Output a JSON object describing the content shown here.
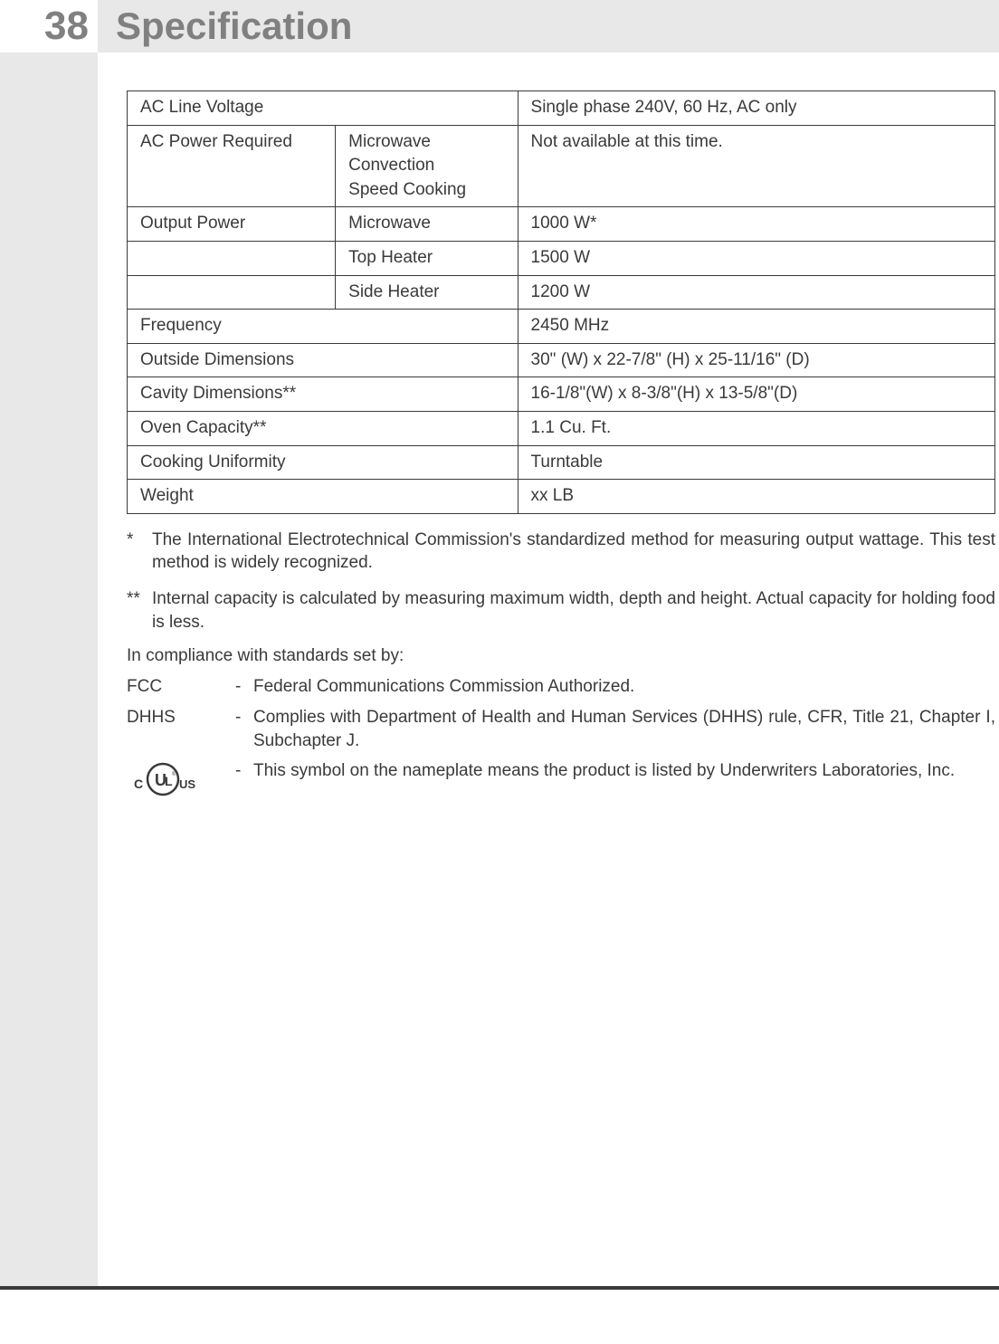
{
  "page_number": "38",
  "title": "Specification",
  "spec_table": {
    "rows": [
      {
        "c1": "AC Line Voltage",
        "c2": "",
        "c3": "Single phase 240V, 60 Hz, AC only",
        "span12": true
      },
      {
        "c1": "AC Power Required",
        "c2": "Microwave\nConvection\nSpeed Cooking",
        "c3": "Not available at this time."
      },
      {
        "c1": "Output Power",
        "c2": "Microwave",
        "c3": "1000 W*"
      },
      {
        "c1": "",
        "c2": "Top Heater",
        "c3": "1500 W"
      },
      {
        "c1": "",
        "c2": "Side Heater",
        "c3": "1200 W"
      },
      {
        "c1": "Frequency",
        "c2": "",
        "c3": "2450 MHz",
        "span12": true
      },
      {
        "c1": "Outside Dimensions",
        "c2": "",
        "c3": "30\" (W) x 22-7/8\" (H) x 25-11/16\" (D)",
        "span12": true
      },
      {
        "c1": "Cavity Dimensions**",
        "c2": "",
        "c3": "16-1/8\"(W) x 8-3/8\"(H) x 13-5/8\"(D)",
        "span12": true
      },
      {
        "c1": "Oven Capacity**",
        "c2": "",
        "c3": "1.1 Cu. Ft.",
        "span12": true
      },
      {
        "c1": "Cooking Uniformity",
        "c2": "",
        "c3": "Turntable",
        "span12": true
      },
      {
        "c1": "Weight",
        "c2": "",
        "c3": "xx LB",
        "span12": true
      }
    ]
  },
  "footnotes": [
    {
      "marker": "*",
      "text": "The International Electrotechnical Commission's standardized method for measuring output wattage. This test method is widely recognized."
    },
    {
      "marker": "**",
      "text": "Internal capacity is calculated by measuring maximum width, depth and height. Actual capacity for holding food is less."
    }
  ],
  "compliance_intro": "In compliance with standards set by:",
  "compliance": [
    {
      "label": "FCC",
      "text": "Federal Communications Commission Authorized."
    },
    {
      "label": "DHHS",
      "text": "Complies with Department of Health and Human Services (DHHS) rule, CFR, Title 21, Chapter I, Subchapter J."
    },
    {
      "label": "UL_ICON",
      "text": "This symbol on the nameplate means the product is listed by Underwriters Laboratories, Inc."
    }
  ],
  "colors": {
    "text": "#3a3a3a",
    "gray_text": "#808080",
    "header_bg": "#e8e8e8",
    "background": "#ffffff"
  }
}
